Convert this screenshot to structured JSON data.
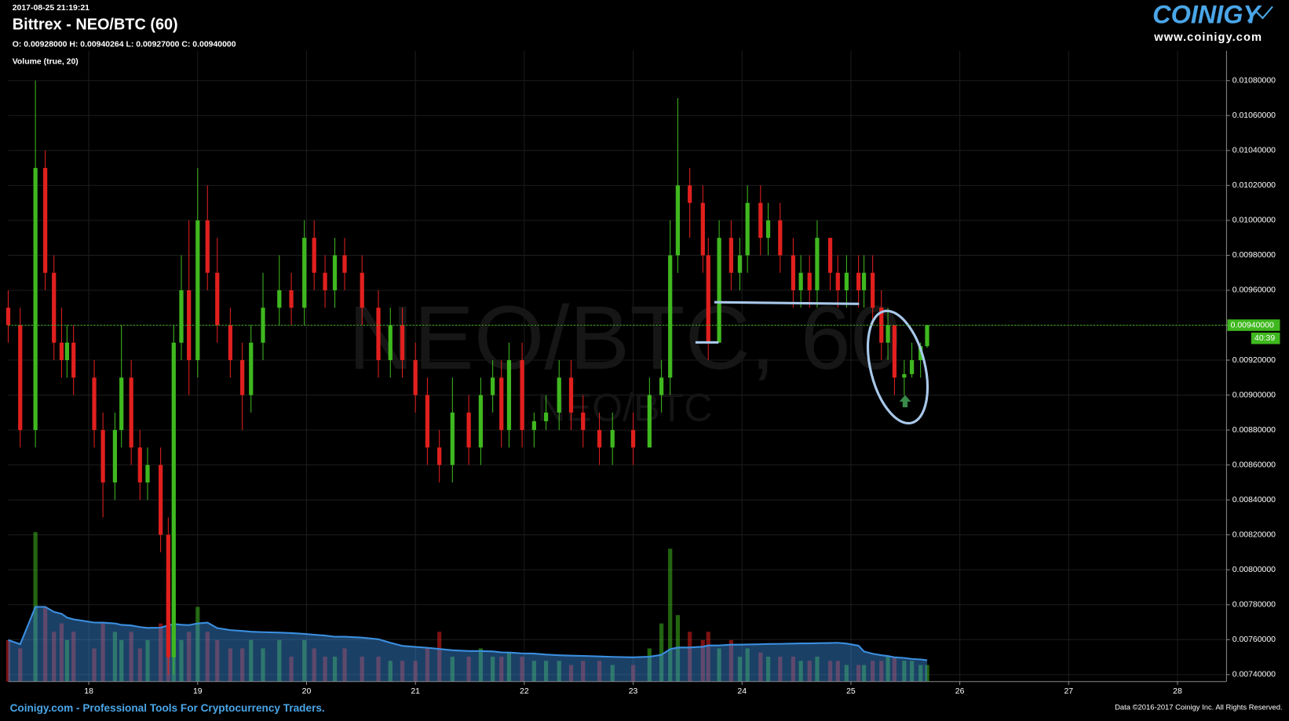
{
  "chart_data": {
    "type": "candlestick",
    "timestamp": "2017-08-25 21:19:21",
    "title": "Bittrex - NEO/BTC (60)",
    "ohlc_text": "O: 0.00928000 H: 0.00940264 L: 0.00927000 C: 0.00940000",
    "volume_label": "Volume (true, 20)",
    "volume_ma_period": 20,
    "watermark": "NEO/BTC, 60",
    "watermark_sub": "NEO/BTC",
    "logo": "COINIGY",
    "logo_url": "www.coinigy.com",
    "footer": "Coinigy.com - Professional Tools For Cryptocurrency Traders.",
    "copyright": "Data ©2016-2017 Coinigy Inc. All Rights Reserved.",
    "last_price": {
      "value": 0.0094,
      "label": "0.00940000"
    },
    "countdown": "40:39",
    "up_color": "#3fb81f",
    "down_color": "#e0201e",
    "volume_ma_color": "#3b8fe0",
    "grid": true,
    "xlim": [
      17.26,
      28.45
    ],
    "xticks": [
      18,
      19,
      20,
      21,
      22,
      23,
      24,
      25,
      26,
      27,
      28
    ],
    "ylim": [
      0.00736,
      0.01097
    ],
    "yticks": [
      {
        "value": 0.0074,
        "label": "0.00740000"
      },
      {
        "value": 0.0076,
        "label": "0.00760000"
      },
      {
        "value": 0.0078,
        "label": "0.00780000"
      },
      {
        "value": 0.008,
        "label": "0.00800000"
      },
      {
        "value": 0.0082,
        "label": "0.00820000"
      },
      {
        "value": 0.0084,
        "label": "0.00840000"
      },
      {
        "value": 0.0086,
        "label": "0.00860000"
      },
      {
        "value": 0.0088,
        "label": "0.00880000"
      },
      {
        "value": 0.009,
        "label": "0.00900000"
      },
      {
        "value": 0.0092,
        "label": "0.00920000"
      },
      {
        "value": 0.0094,
        "label": "0.00940000"
      },
      {
        "value": 0.0096,
        "label": "0.00960000"
      },
      {
        "value": 0.0098,
        "label": "0.00980000"
      },
      {
        "value": 0.01,
        "label": "0.01000000"
      },
      {
        "value": 0.0102,
        "label": "0.01020000"
      },
      {
        "value": 0.0104,
        "label": "0.01040000"
      },
      {
        "value": 0.0106,
        "label": "0.01060000"
      },
      {
        "value": 0.0108,
        "label": "0.01080000"
      }
    ],
    "x": [
      17.26,
      17.37,
      17.51,
      17.6,
      17.68,
      17.75,
      17.8,
      17.86,
      18.05,
      18.13,
      18.24,
      18.3,
      18.39,
      18.47,
      18.54,
      18.66,
      18.73,
      18.78,
      18.85,
      18.92,
      19,
      19.09,
      19.18,
      19.3,
      19.41,
      19.49,
      19.6,
      19.75,
      19.86,
      19.98,
      20.07,
      20.17,
      20.26,
      20.35,
      20.51,
      20.66,
      20.77,
      20.88,
      21,
      21.11,
      21.22,
      21.34,
      21.49,
      21.6,
      21.71,
      21.79,
      21.86,
      21.98,
      22.09,
      22.2,
      22.32,
      22.43,
      22.54,
      22.69,
      22.81,
      23,
      23.15,
      23.26,
      23.34,
      23.41,
      23.52,
      23.64,
      23.69,
      23.79,
      23.9,
      23.98,
      24.05,
      24.17,
      24.24,
      24.35,
      24.47,
      24.54,
      24.62,
      24.69,
      24.81,
      24.88,
      24.96,
      25.07,
      25.12,
      25.2,
      25.28,
      25.34,
      25.4,
      25.49,
      25.56,
      25.64,
      25.7
    ],
    "open": [
      0.0095,
      0.0094,
      0.0088,
      0.0103,
      0.0097,
      0.0093,
      0.0092,
      0.0093,
      0.0091,
      0.0088,
      0.0085,
      0.0088,
      0.0091,
      0.0087,
      0.0085,
      0.0086,
      0.0082,
      0.0075,
      0.0093,
      0.0096,
      0.0092,
      0.01,
      0.0097,
      0.0094,
      0.0092,
      0.009,
      0.0093,
      0.0095,
      0.0096,
      0.0095,
      0.0099,
      0.0097,
      0.0096,
      0.0098,
      0.0097,
      0.0095,
      0.0092,
      0.0094,
      0.0092,
      0.009,
      0.0087,
      0.0086,
      0.0089,
      0.0087,
      0.009,
      0.0091,
      0.0088,
      0.0092,
      0.0088,
      0.00885,
      0.0089,
      0.0091,
      0.0089,
      0.0088,
      0.0087,
      0.0088,
      0.0087,
      0.009,
      0.0091,
      0.0098,
      0.0102,
      0.0101,
      0.0098,
      0.0093,
      0.0099,
      0.0097,
      0.0098,
      0.0101,
      0.0099,
      0.01,
      0.0098,
      0.0096,
      0.0097,
      0.0096,
      0.0099,
      0.0097,
      0.0096,
      0.0097,
      0.0096,
      0.0097,
      0.0095,
      0.0093,
      0.0094,
      0.0091,
      0.00912,
      0.0092,
      0.00928
    ],
    "high": [
      0.0096,
      0.0095,
      0.0108,
      0.0104,
      0.0098,
      0.0095,
      0.0094,
      0.0094,
      0.0092,
      0.0089,
      0.0089,
      0.0094,
      0.0092,
      0.0088,
      0.0087,
      0.0087,
      0.0083,
      0.0094,
      0.0098,
      0.01,
      0.0103,
      0.0102,
      0.0099,
      0.0095,
      0.0093,
      0.0094,
      0.0097,
      0.0098,
      0.0097,
      0.01,
      0.01,
      0.0098,
      0.0099,
      0.0099,
      0.0098,
      0.0096,
      0.0095,
      0.0095,
      0.0093,
      0.0091,
      0.0088,
      0.0091,
      0.009,
      0.0091,
      0.0092,
      0.0092,
      0.0093,
      0.0093,
      0.0089,
      0.009,
      0.0092,
      0.0092,
      0.009,
      0.0089,
      0.0089,
      0.0089,
      0.0091,
      0.0092,
      0.01,
      0.0107,
      0.0103,
      0.0102,
      0.0099,
      0.01,
      0.01,
      0.0099,
      0.0102,
      0.0102,
      0.0101,
      0.0101,
      0.0099,
      0.0098,
      0.0098,
      0.01,
      0.0099,
      0.0098,
      0.0098,
      0.0098,
      0.0098,
      0.0098,
      0.0096,
      0.0095,
      0.0094,
      0.0092,
      0.0093,
      0.0093,
      0.00940264
    ],
    "low": [
      0.0093,
      0.0087,
      0.0087,
      0.0096,
      0.0092,
      0.0091,
      0.0091,
      0.009,
      0.0087,
      0.0083,
      0.0084,
      0.0087,
      0.0086,
      0.0084,
      0.0084,
      0.0081,
      0.0074,
      0.0074,
      0.0092,
      0.009,
      0.0091,
      0.0096,
      0.0093,
      0.0091,
      0.0088,
      0.0089,
      0.0092,
      0.0094,
      0.0094,
      0.0094,
      0.0096,
      0.0095,
      0.0095,
      0.0096,
      0.0094,
      0.0091,
      0.0091,
      0.0091,
      0.0089,
      0.0086,
      0.0085,
      0.0085,
      0.0086,
      0.0086,
      0.0089,
      0.0087,
      0.0087,
      0.0087,
      0.0087,
      0.0088,
      0.0088,
      0.0088,
      0.0087,
      0.0086,
      0.0086,
      0.0086,
      0.0087,
      0.0089,
      0.009,
      0.0097,
      0.0099,
      0.0097,
      0.0092,
      0.0093,
      0.0096,
      0.0096,
      0.0097,
      0.0098,
      0.0098,
      0.0097,
      0.0095,
      0.0095,
      0.0095,
      0.0095,
      0.0096,
      0.0095,
      0.0095,
      0.0095,
      0.0095,
      0.0094,
      0.0092,
      0.0092,
      0.009,
      0.009,
      0.0091,
      0.0091,
      0.00927
    ],
    "close": [
      0.0094,
      0.0088,
      0.0103,
      0.0097,
      0.0093,
      0.0092,
      0.0093,
      0.0091,
      0.0088,
      0.0085,
      0.0088,
      0.0091,
      0.0087,
      0.0085,
      0.0086,
      0.0082,
      0.0075,
      0.0093,
      0.0096,
      0.0092,
      0.01,
      0.0097,
      0.0094,
      0.0092,
      0.009,
      0.0093,
      0.0095,
      0.0096,
      0.0095,
      0.0099,
      0.0097,
      0.0096,
      0.0098,
      0.0097,
      0.0095,
      0.0092,
      0.0094,
      0.0092,
      0.009,
      0.0087,
      0.0086,
      0.0089,
      0.0087,
      0.009,
      0.0091,
      0.0088,
      0.0092,
      0.0088,
      0.00885,
      0.0089,
      0.0091,
      0.0089,
      0.0088,
      0.0087,
      0.0088,
      0.0087,
      0.009,
      0.0091,
      0.0098,
      0.0102,
      0.0101,
      0.0098,
      0.0093,
      0.0099,
      0.0097,
      0.0098,
      0.0101,
      0.0099,
      0.01,
      0.0098,
      0.0096,
      0.0097,
      0.0096,
      0.0099,
      0.0097,
      0.0096,
      0.0097,
      0.0096,
      0.0097,
      0.0095,
      0.0093,
      0.0094,
      0.0091,
      0.00912,
      0.0092,
      0.00928,
      0.0094
    ],
    "volume": [
      50,
      40,
      180,
      90,
      60,
      70,
      50,
      60,
      40,
      70,
      60,
      50,
      60,
      40,
      50,
      70,
      110,
      100,
      50,
      60,
      90,
      60,
      50,
      40,
      40,
      50,
      40,
      50,
      30,
      50,
      40,
      30,
      30,
      40,
      30,
      30,
      25,
      25,
      25,
      40,
      60,
      30,
      30,
      40,
      30,
      30,
      35,
      30,
      25,
      25,
      25,
      20,
      25,
      25,
      20,
      20,
      40,
      70,
      160,
      80,
      60,
      50,
      60,
      40,
      50,
      30,
      40,
      35,
      30,
      30,
      30,
      25,
      25,
      30,
      25,
      25,
      20,
      20,
      20,
      25,
      25,
      30,
      30,
      25,
      25,
      20,
      20
    ]
  }
}
